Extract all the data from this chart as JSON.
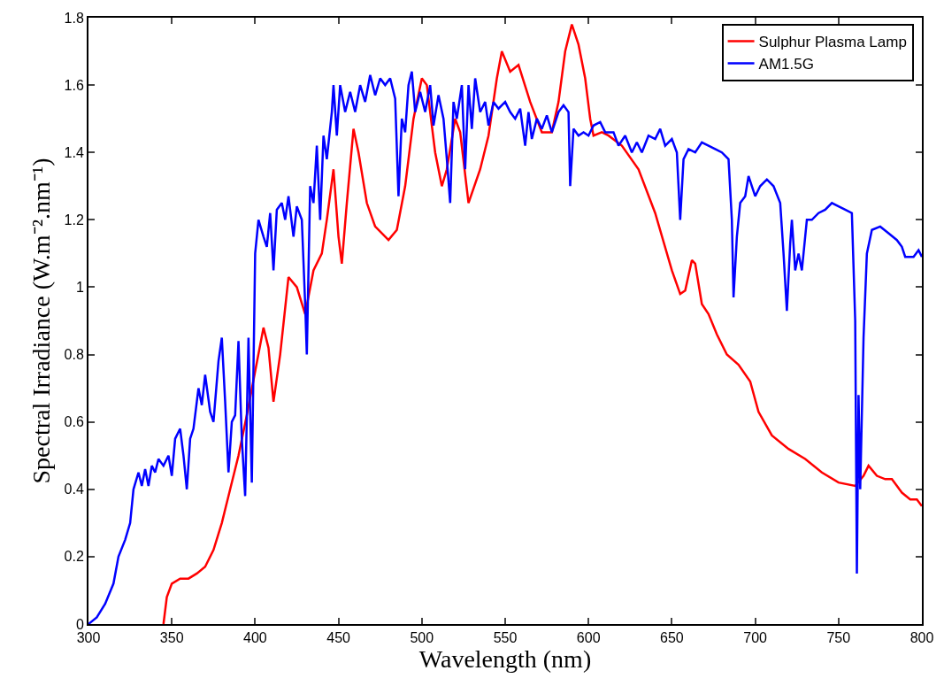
{
  "chart_data": {
    "type": "line",
    "xlabel": "Wavelength (nm)",
    "ylabel": "Spectral Irradiance (W.m⁻².nm⁻¹)",
    "xlim": [
      300,
      800
    ],
    "ylim": [
      0,
      1.8
    ],
    "xticks": [
      300,
      350,
      400,
      450,
      500,
      550,
      600,
      650,
      700,
      750,
      800
    ],
    "yticks": [
      0,
      0.2,
      0.4,
      0.6,
      0.8,
      1,
      1.2,
      1.4,
      1.6,
      1.8
    ],
    "grid": false,
    "legend": "top right",
    "marker": "none",
    "line_style": "solid",
    "series": [
      {
        "name": "Sulphur Plasma Lamp",
        "color": "#ff0000",
        "x": [
          345,
          347,
          350,
          355,
          360,
          365,
          370,
          375,
          380,
          385,
          390,
          395,
          400,
          405,
          408,
          411,
          415,
          420,
          425,
          430,
          435,
          440,
          443,
          447,
          450,
          452,
          455,
          459,
          462,
          467,
          472,
          480,
          485,
          490,
          495,
          500,
          503,
          508,
          512,
          515,
          520,
          523,
          528,
          535,
          540,
          545,
          548,
          553,
          558,
          565,
          572,
          578,
          582,
          586,
          590,
          594,
          598,
          601,
          603,
          608,
          612,
          620,
          630,
          640,
          650,
          655,
          658,
          662,
          664,
          668,
          672,
          677,
          683,
          690,
          697,
          702,
          710,
          720,
          730,
          740,
          750,
          760,
          765,
          768,
          773,
          778,
          782,
          788,
          793,
          797,
          800
        ],
        "values": [
          0,
          0.08,
          0.12,
          0.135,
          0.135,
          0.15,
          0.17,
          0.22,
          0.3,
          0.4,
          0.5,
          0.62,
          0.75,
          0.88,
          0.82,
          0.66,
          0.8,
          1.03,
          1.0,
          0.92,
          1.05,
          1.1,
          1.2,
          1.35,
          1.15,
          1.07,
          1.25,
          1.47,
          1.4,
          1.25,
          1.18,
          1.14,
          1.17,
          1.3,
          1.5,
          1.62,
          1.6,
          1.4,
          1.3,
          1.35,
          1.5,
          1.46,
          1.25,
          1.35,
          1.45,
          1.62,
          1.7,
          1.64,
          1.66,
          1.55,
          1.46,
          1.46,
          1.55,
          1.7,
          1.78,
          1.72,
          1.62,
          1.5,
          1.45,
          1.46,
          1.45,
          1.42,
          1.35,
          1.22,
          1.05,
          0.98,
          0.99,
          1.08,
          1.07,
          0.95,
          0.92,
          0.86,
          0.8,
          0.77,
          0.72,
          0.63,
          0.56,
          0.52,
          0.49,
          0.45,
          0.42,
          0.41,
          0.44,
          0.47,
          0.44,
          0.43,
          0.43,
          0.39,
          0.37,
          0.37,
          0.35
        ]
      },
      {
        "name": "AM1.5G",
        "color": "#0000ff",
        "x": [
          300,
          305,
          310,
          315,
          318,
          322,
          325,
          327,
          330,
          332,
          334,
          336,
          338,
          340,
          342,
          345,
          348,
          350,
          352,
          355,
          357,
          359,
          361,
          363,
          366,
          368,
          370,
          373,
          375,
          378,
          380,
          382,
          384,
          386,
          388,
          390,
          392,
          394,
          396,
          398,
          400,
          402,
          405,
          407,
          409,
          411,
          413,
          416,
          418,
          420,
          423,
          425,
          428,
          430,
          431,
          433,
          435,
          437,
          439,
          441,
          443,
          446,
          447,
          449,
          451,
          454,
          457,
          460,
          463,
          466,
          469,
          472,
          475,
          478,
          481,
          484,
          486,
          488,
          490,
          492,
          494,
          496,
          499,
          502,
          505,
          507,
          510,
          513,
          515,
          517,
          519,
          521,
          524,
          526,
          528,
          530,
          532,
          535,
          538,
          540,
          543,
          546,
          550,
          553,
          556,
          559,
          562,
          564,
          566,
          569,
          572,
          575,
          578,
          582,
          585,
          588,
          589,
          591,
          594,
          597,
          600,
          603,
          607,
          610,
          615,
          618,
          622,
          626,
          629,
          632,
          636,
          640,
          643,
          646,
          650,
          653,
          655,
          657,
          660,
          664,
          668,
          672,
          676,
          680,
          684,
          686,
          687,
          689,
          691,
          694,
          696,
          698,
          700,
          703,
          707,
          711,
          715,
          717,
          719,
          721,
          722,
          724,
          726,
          728,
          731,
          734,
          738,
          742,
          746,
          750,
          754,
          758,
          760,
          761,
          762,
          763,
          765,
          767,
          770,
          775,
          780,
          785,
          788,
          790,
          795,
          798,
          800
        ],
        "values": [
          0,
          0.02,
          0.06,
          0.12,
          0.2,
          0.25,
          0.3,
          0.4,
          0.45,
          0.41,
          0.46,
          0.41,
          0.47,
          0.45,
          0.49,
          0.47,
          0.5,
          0.44,
          0.55,
          0.58,
          0.5,
          0.4,
          0.55,
          0.58,
          0.7,
          0.65,
          0.74,
          0.63,
          0.6,
          0.78,
          0.85,
          0.66,
          0.45,
          0.6,
          0.62,
          0.84,
          0.55,
          0.38,
          0.85,
          0.42,
          1.1,
          1.2,
          1.15,
          1.12,
          1.22,
          1.05,
          1.23,
          1.25,
          1.2,
          1.27,
          1.15,
          1.24,
          1.2,
          0.95,
          0.8,
          1.3,
          1.25,
          1.42,
          1.2,
          1.45,
          1.38,
          1.52,
          1.6,
          1.45,
          1.6,
          1.52,
          1.58,
          1.52,
          1.6,
          1.55,
          1.63,
          1.57,
          1.62,
          1.6,
          1.62,
          1.56,
          1.27,
          1.5,
          1.46,
          1.6,
          1.64,
          1.52,
          1.58,
          1.52,
          1.6,
          1.48,
          1.57,
          1.5,
          1.38,
          1.25,
          1.55,
          1.5,
          1.6,
          1.35,
          1.6,
          1.47,
          1.62,
          1.52,
          1.55,
          1.48,
          1.55,
          1.53,
          1.55,
          1.52,
          1.5,
          1.53,
          1.42,
          1.52,
          1.44,
          1.5,
          1.47,
          1.51,
          1.46,
          1.52,
          1.54,
          1.52,
          1.3,
          1.47,
          1.45,
          1.46,
          1.45,
          1.48,
          1.49,
          1.46,
          1.46,
          1.42,
          1.45,
          1.4,
          1.43,
          1.4,
          1.45,
          1.44,
          1.47,
          1.42,
          1.44,
          1.4,
          1.2,
          1.38,
          1.41,
          1.4,
          1.43,
          1.42,
          1.41,
          1.4,
          1.38,
          1.2,
          0.97,
          1.15,
          1.25,
          1.27,
          1.33,
          1.3,
          1.27,
          1.3,
          1.32,
          1.3,
          1.25,
          1.1,
          0.93,
          1.13,
          1.2,
          1.05,
          1.1,
          1.05,
          1.2,
          1.2,
          1.22,
          1.23,
          1.25,
          1.24,
          1.23,
          1.22,
          0.9,
          0.15,
          0.68,
          0.4,
          0.85,
          1.1,
          1.17,
          1.18,
          1.16,
          1.14,
          1.12,
          1.09,
          1.09,
          1.11,
          1.09
        ]
      }
    ]
  }
}
